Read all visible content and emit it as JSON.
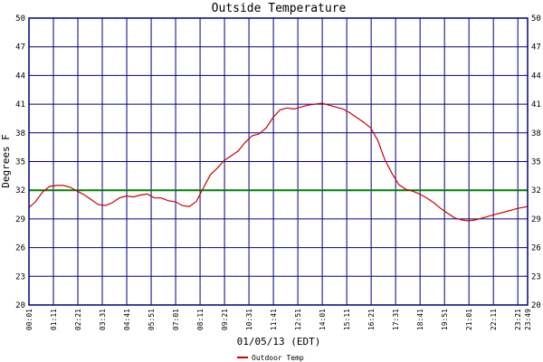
{
  "chart_data": {
    "type": "line",
    "title": "Outside Temperature",
    "xlabel": "01/05/13 (EDT)",
    "ylabel": "Degrees F",
    "ylim": [
      20,
      50
    ],
    "yticks": [
      20,
      23,
      26,
      29,
      32,
      35,
      38,
      41,
      44,
      47,
      50
    ],
    "x_ticks": [
      "00:01",
      "01:11",
      "02:21",
      "03:31",
      "04:41",
      "05:51",
      "07:01",
      "08:11",
      "09:21",
      "10:31",
      "11:41",
      "12:51",
      "14:01",
      "15:11",
      "16:21",
      "17:31",
      "18:41",
      "19:51",
      "21:01",
      "22:11",
      "23:21",
      "23:49"
    ],
    "x_tick_minutes": [
      1,
      71,
      141,
      211,
      281,
      351,
      421,
      491,
      561,
      631,
      701,
      771,
      841,
      911,
      981,
      1051,
      1121,
      1191,
      1261,
      1331,
      1401,
      1429
    ],
    "reference_line": {
      "y": 32,
      "color": "#008000"
    },
    "grid": true,
    "legend_position": "bottom-center",
    "colors": {
      "grid": "#000080",
      "axis": "#000080",
      "series": "#cc0000",
      "text": "#000000"
    },
    "series": [
      {
        "name": "Outdoor Temp",
        "x": [
          1,
          20,
          40,
          60,
          80,
          100,
          120,
          140,
          160,
          180,
          200,
          220,
          240,
          260,
          280,
          300,
          320,
          340,
          360,
          380,
          400,
          420,
          440,
          460,
          480,
          500,
          520,
          540,
          560,
          580,
          600,
          620,
          640,
          660,
          680,
          700,
          720,
          740,
          760,
          780,
          800,
          820,
          840,
          860,
          880,
          900,
          920,
          940,
          960,
          980,
          1000,
          1020,
          1040,
          1060,
          1080,
          1100,
          1120,
          1140,
          1160,
          1180,
          1200,
          1220,
          1240,
          1260,
          1280,
          1300,
          1320,
          1340,
          1360,
          1380,
          1400,
          1429
        ],
        "values": [
          30.2,
          30.8,
          31.8,
          32.4,
          32.5,
          32.5,
          32.3,
          31.9,
          31.5,
          31.0,
          30.5,
          30.4,
          30.7,
          31.2,
          31.4,
          31.3,
          31.5,
          31.6,
          31.2,
          31.2,
          30.9,
          30.8,
          30.4,
          30.3,
          30.8,
          32.2,
          33.6,
          34.3,
          35.1,
          35.6,
          36.1,
          37.0,
          37.7,
          37.9,
          38.5,
          39.6,
          40.4,
          40.6,
          40.5,
          40.7,
          40.9,
          41.0,
          41.1,
          40.9,
          40.7,
          40.5,
          40.1,
          39.6,
          39.1,
          38.5,
          37.2,
          35.2,
          33.8,
          32.6,
          32.1,
          31.9,
          31.6,
          31.2,
          30.7,
          30.1,
          29.6,
          29.1,
          28.9,
          28.8,
          28.9,
          29.1,
          29.3,
          29.5,
          29.7,
          29.9,
          30.1,
          30.3
        ]
      }
    ]
  }
}
